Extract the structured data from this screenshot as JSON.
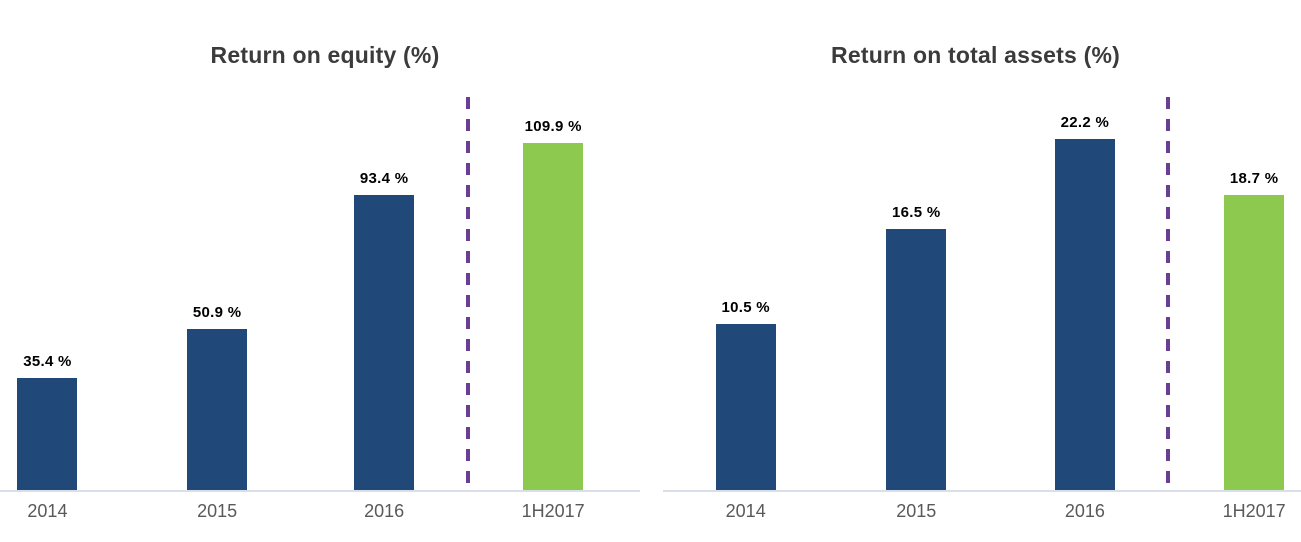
{
  "colors": {
    "bar-blue": "#204878",
    "bar-green": "#8DC94E",
    "divider-purple": "#6B3E93",
    "axis-line": "#D9DFE8",
    "title-text": "#3B3B3B",
    "tick-text": "#595959",
    "label-text": "#000000",
    "background": "#FFFFFF"
  },
  "chart_data": [
    {
      "type": "bar",
      "title": "Return on equity (%)",
      "categories": [
        "2014",
        "2015",
        "2016",
        "1H2017"
      ],
      "values": [
        35.4,
        50.9,
        93.4,
        109.9
      ],
      "data_labels": [
        "35.4 %",
        "50.9 %",
        "93.4 %",
        "109.9 %"
      ],
      "bar_colors": [
        "#204878",
        "#204878",
        "#204878",
        "#8DC94E"
      ],
      "xlabel": "",
      "ylabel": "",
      "ylim": [
        0,
        125
      ],
      "y_axis_visible": false,
      "grid": false,
      "legend": false,
      "divider": {
        "style": "dashed",
        "color": "#6B3E93",
        "after_category": "2016"
      }
    },
    {
      "type": "bar",
      "title": "Return on total assets (%)",
      "categories": [
        "2014",
        "2015",
        "2016",
        "1H2017"
      ],
      "values": [
        10.5,
        16.5,
        22.2,
        18.7
      ],
      "data_labels": [
        "10.5 %",
        "16.5 %",
        "22.2 %",
        "18.7 %"
      ],
      "bar_colors": [
        "#204878",
        "#204878",
        "#204878",
        "#8DC94E"
      ],
      "xlabel": "",
      "ylabel": "",
      "ylim": [
        0,
        25
      ],
      "y_axis_visible": false,
      "grid": false,
      "legend": false,
      "divider": {
        "style": "dashed",
        "color": "#6B3E93",
        "after_category": "2016"
      }
    }
  ]
}
